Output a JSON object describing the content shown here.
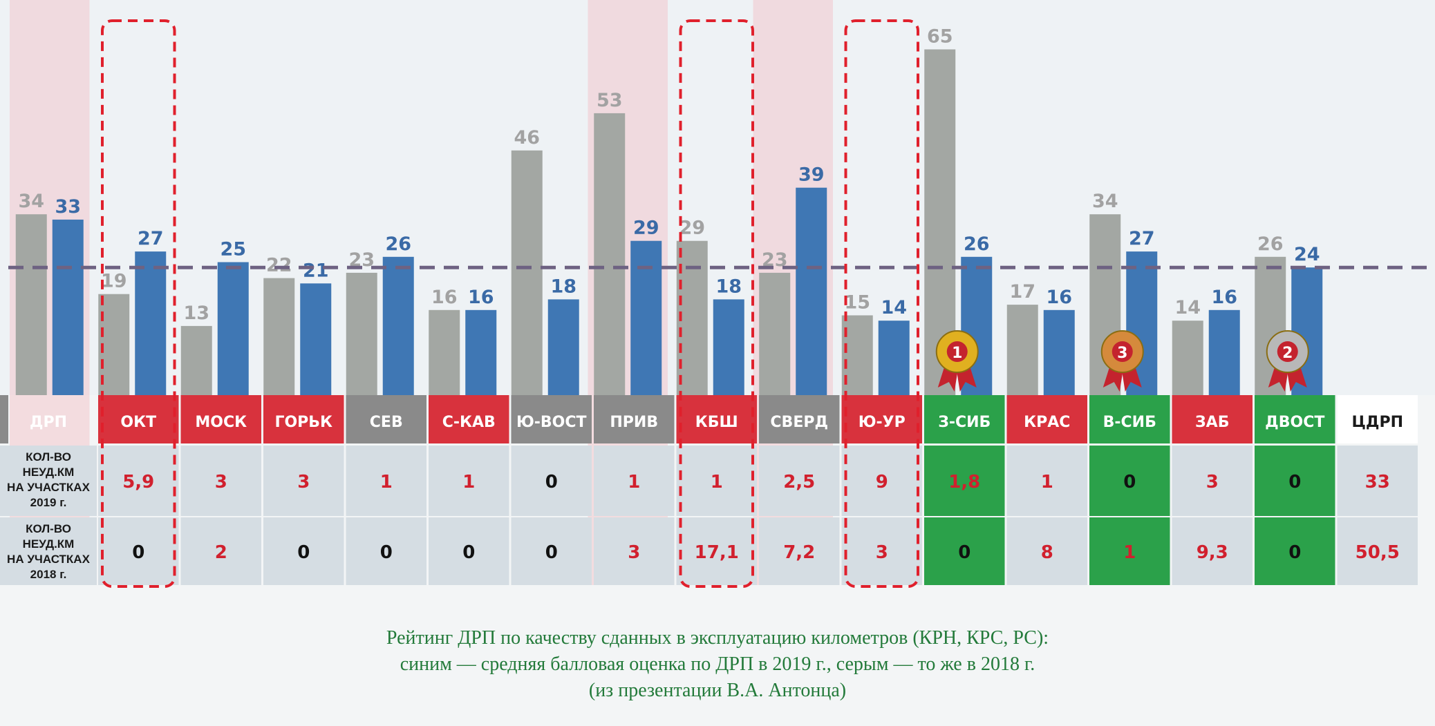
{
  "chart_data": {
    "type": "bar",
    "categories": [
      "ОКТ",
      "МОСК",
      "ГОРЬК",
      "СЕВ",
      "С-КАВ",
      "Ю-ВОСТ",
      "ПРИВ",
      "КБШ",
      "СВЕРД",
      "Ю-УР",
      "З-СИБ",
      "КРАС",
      "В-СИБ",
      "ЗАБ",
      "ДВОСТ",
      "ЦДРП"
    ],
    "series": [
      {
        "values": [
          34,
          19,
          13,
          22,
          23,
          16,
          46,
          53,
          29,
          23,
          15,
          65,
          17,
          34,
          14,
          26
        ]
      },
      {
        "values": [
          33,
          27,
          25,
          21,
          26,
          16,
          18,
          29,
          18,
          39,
          14,
          26,
          16,
          27,
          16,
          24
        ]
      }
    ],
    "ylim": [
      0,
      70
    ],
    "average_line": 24,
    "grid": false,
    "highlighted": [
      "ОКТ",
      "КБШ",
      "Ю-УР"
    ],
    "medals": [
      {
        "category": "З-СИБ",
        "place": "1",
        "color": "#e0b020"
      },
      {
        "category": "ДВОСТ",
        "place": "2",
        "color": "#b8b8b8"
      },
      {
        "category": "В-СИБ",
        "place": "3",
        "color": "#d58a3c"
      }
    ],
    "colors": {
      "series_2018": "#a3a7a3",
      "series_2019": "#3f77b4",
      "average_line": "#6e6282"
    }
  },
  "table": {
    "header_label": "ДРП",
    "row1_label": "КОЛ-ВО НЕУД.КМ НА УЧАСТКАХ 2019 г.",
    "row2_label": "КОЛ-ВО НЕУД.КМ НА УЧАСТКАХ 2018 г.",
    "row1": [
      "5,9",
      "3",
      "3",
      "1",
      "1",
      "0",
      "1",
      "1",
      "2,5",
      "9",
      "1,8",
      "1",
      "0",
      "3",
      "0",
      "33"
    ],
    "row2": [
      "0",
      "2",
      "0",
      "0",
      "0",
      "0",
      "3",
      "17,1",
      "7,2",
      "3",
      "0",
      "8",
      "1",
      "9,3",
      "0",
      "50,5"
    ],
    "header_colors": [
      "red",
      "red",
      "red",
      "gray",
      "red",
      "gray",
      "gray",
      "red",
      "gray",
      "red",
      "green",
      "red",
      "green",
      "red",
      "green",
      "white"
    ],
    "green_columns": [
      10,
      12,
      14
    ]
  },
  "caption": {
    "line1": "Рейтинг ДРП по качеству сданных в эксплуатацию километров (КРН, КРС, РС):",
    "line2": "синим — средняя балловая оценка по ДРП в 2019 г., серым — то же в 2018 г.",
    "line3": "(из презентации В.А. Антонца)"
  }
}
